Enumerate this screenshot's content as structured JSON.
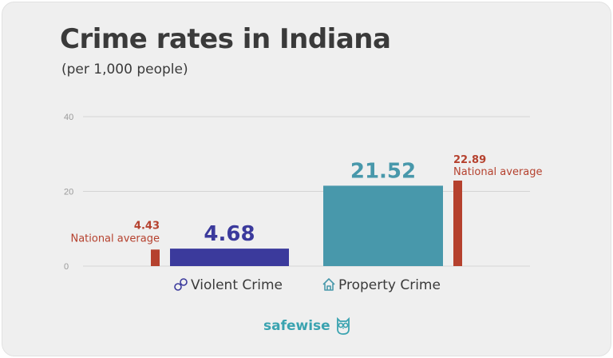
{
  "title": "Crime rates in Indiana",
  "subtitle": "(per 1,000 people)",
  "brand": {
    "name": "safewise",
    "icon": "owl-icon"
  },
  "colors": {
    "violent": "#3b3a9c",
    "property": "#4898ab",
    "national": "#b5412e",
    "grid": "#d4d4d4",
    "tick": "#9a9a9a"
  },
  "chart_data": {
    "type": "bar",
    "title": "Crime rates in Indiana",
    "subtitle": "(per 1,000 people)",
    "ylim": [
      0,
      40
    ],
    "yticks": [
      0,
      20,
      40
    ],
    "grid": true,
    "categories": [
      {
        "name": "Violent Crime",
        "icon": "handcuffs-icon",
        "value": 4.68,
        "value_label": "4.68",
        "national_average": 4.43,
        "national_label": "4.43",
        "national_text": "National average"
      },
      {
        "name": "Property Crime",
        "icon": "house-icon",
        "value": 21.52,
        "value_label": "21.52",
        "national_average": 22.89,
        "national_label": "22.89",
        "national_text": "National average"
      }
    ]
  }
}
